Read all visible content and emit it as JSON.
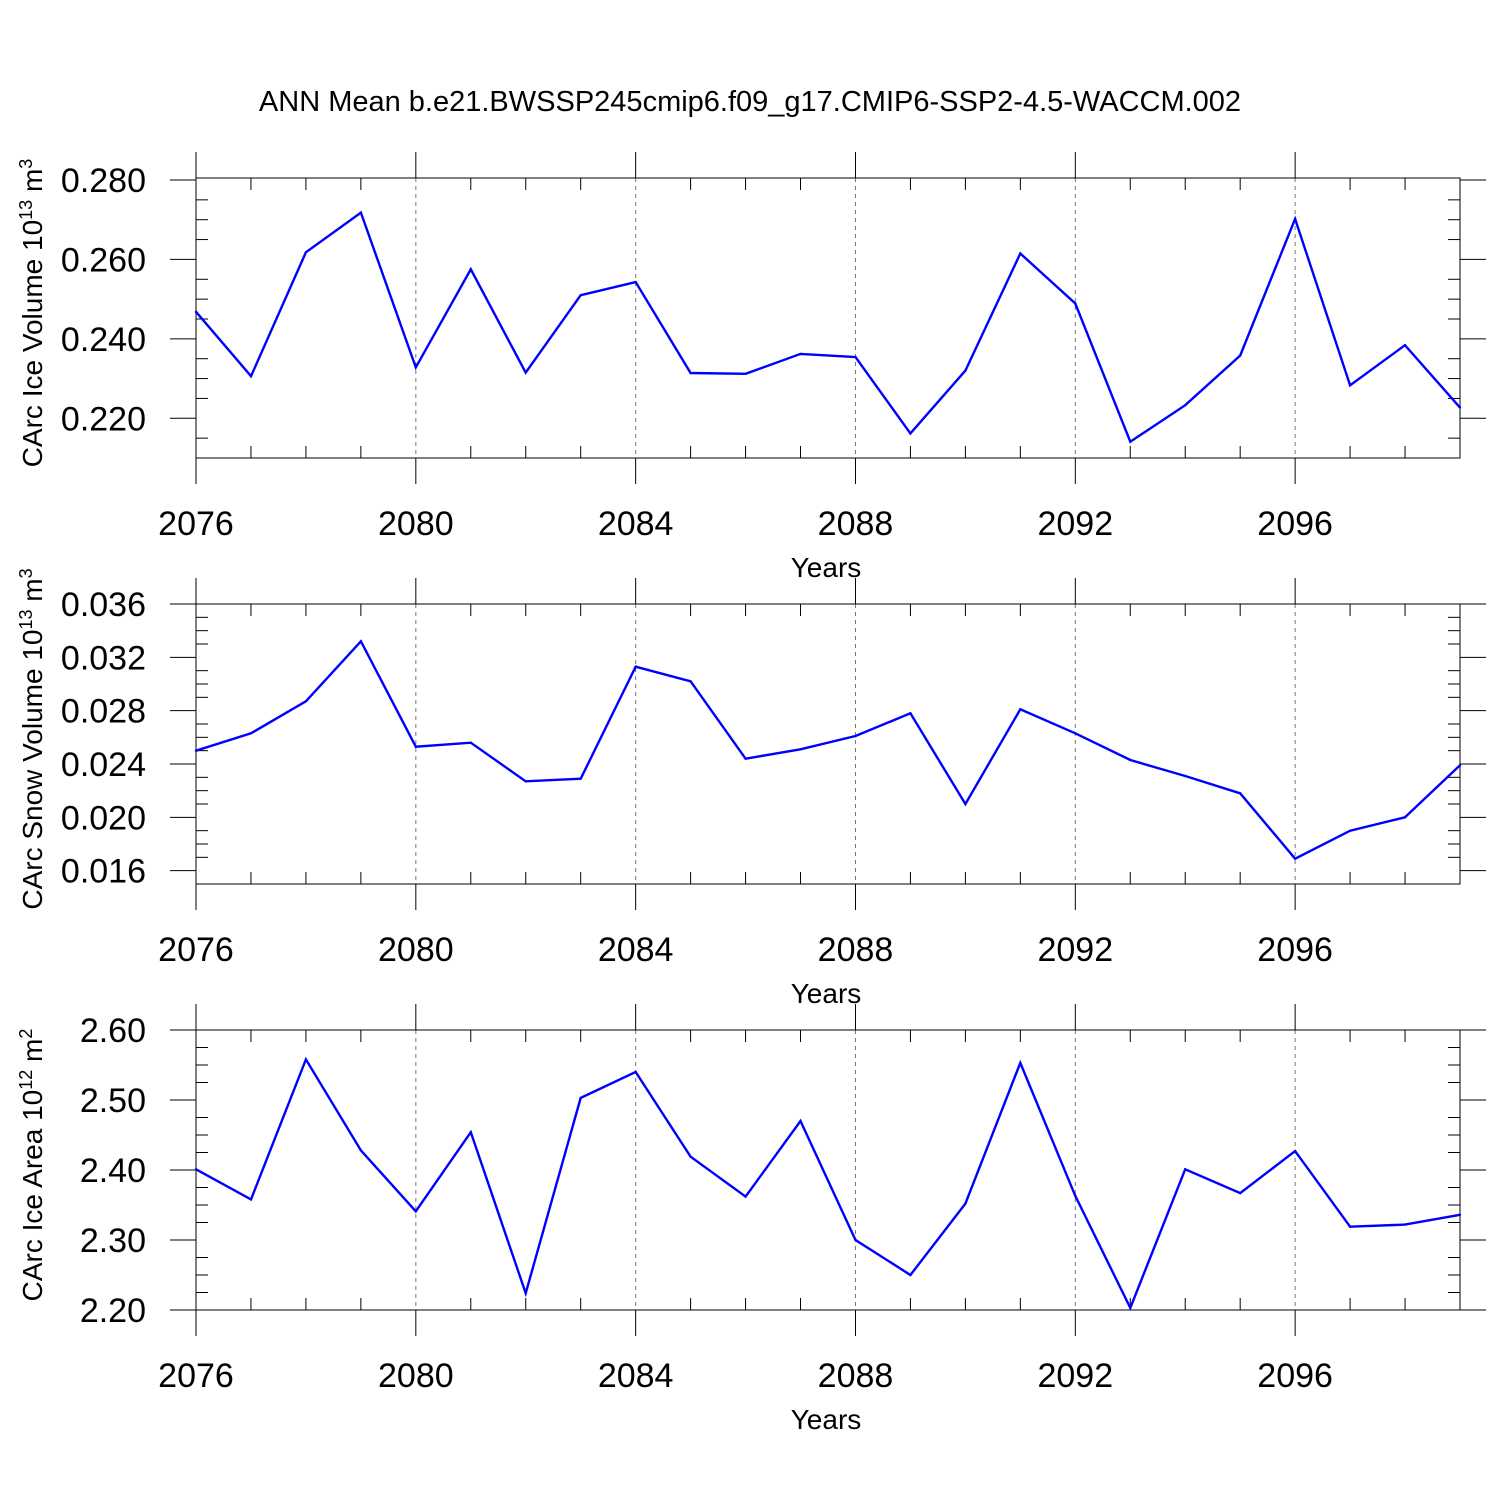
{
  "page_title": "ANN Mean b.e21.BWSSP245cmip6.f09_g17.CMIP6-SSP2-4.5-WACCM.002",
  "colors": {
    "line": "#0000ff",
    "axis": "#000000",
    "grid": "#777777"
  },
  "chart_data": [
    {
      "type": "line",
      "xlabel": "Years",
      "ylabel": "CArc Ice Volume",
      "ylabel_unit": "10",
      "ylabel_exp": "13",
      "ylabel_unit2": " m",
      "ylabel_exp2": "3",
      "xlim": [
        2076,
        2099
      ],
      "ylim": [
        0.21,
        0.2805
      ],
      "x_ticks": [
        "2076",
        "2080",
        "2084",
        "2088",
        "2092",
        "2096"
      ],
      "y_ticks": [
        "0.220",
        "0.240",
        "0.260",
        "0.280"
      ],
      "grid": "vertical dashed at major x ticks",
      "x": [
        2076,
        2077,
        2078,
        2079,
        2080,
        2081,
        2082,
        2083,
        2084,
        2085,
        2086,
        2087,
        2088,
        2089,
        2090,
        2091,
        2092,
        2093,
        2094,
        2095,
        2096,
        2097,
        2098,
        2099
      ],
      "values": [
        0.2468,
        0.2306,
        0.2618,
        0.2718,
        0.2328,
        0.2575,
        0.2315,
        0.251,
        0.2543,
        0.2314,
        0.2312,
        0.2362,
        0.2354,
        0.2162,
        0.232,
        0.2615,
        0.2489,
        0.2141,
        0.2233,
        0.2358,
        0.2702,
        0.2283,
        0.2384,
        0.2227
      ]
    },
    {
      "type": "line",
      "xlabel": "Years",
      "ylabel": "CArc Snow Volume",
      "ylabel_unit": "10",
      "ylabel_exp": "13",
      "ylabel_unit2": " m",
      "ylabel_exp2": "3",
      "xlim": [
        2076,
        2099
      ],
      "ylim": [
        0.015,
        0.036
      ],
      "x_ticks": [
        "2076",
        "2080",
        "2084",
        "2088",
        "2092",
        "2096"
      ],
      "y_ticks": [
        "0.016",
        "0.020",
        "0.024",
        "0.028",
        "0.032",
        "0.036"
      ],
      "grid": "vertical dashed at major x ticks",
      "x": [
        2076,
        2077,
        2078,
        2079,
        2080,
        2081,
        2082,
        2083,
        2084,
        2085,
        2086,
        2087,
        2088,
        2089,
        2090,
        2091,
        2092,
        2093,
        2094,
        2095,
        2096,
        2097,
        2098,
        2099
      ],
      "values": [
        0.025,
        0.0263,
        0.0287,
        0.0332,
        0.0253,
        0.0256,
        0.0227,
        0.0229,
        0.0313,
        0.0302,
        0.0244,
        0.0251,
        0.0261,
        0.0278,
        0.021,
        0.0281,
        0.0263,
        0.0243,
        0.0231,
        0.0218,
        0.0169,
        0.019,
        0.02,
        0.0239
      ]
    },
    {
      "type": "line",
      "xlabel": "Years",
      "ylabel": "CArc Ice Area",
      "ylabel_unit": "10",
      "ylabel_exp": "12",
      "ylabel_unit2": " m",
      "ylabel_exp2": "2",
      "xlim": [
        2076,
        2099
      ],
      "ylim": [
        2.2,
        2.6
      ],
      "x_ticks": [
        "2076",
        "2080",
        "2084",
        "2088",
        "2092",
        "2096"
      ],
      "y_ticks": [
        "2.20",
        "2.30",
        "2.40",
        "2.50",
        "2.60"
      ],
      "grid": "vertical dashed at major x ticks",
      "x": [
        2076,
        2077,
        2078,
        2079,
        2080,
        2081,
        2082,
        2083,
        2084,
        2085,
        2086,
        2087,
        2088,
        2089,
        2090,
        2091,
        2092,
        2093,
        2094,
        2095,
        2096,
        2097,
        2098,
        2099
      ],
      "values": [
        2.401,
        2.358,
        2.558,
        2.428,
        2.341,
        2.454,
        2.224,
        2.503,
        2.54,
        2.419,
        2.362,
        2.47,
        2.3,
        2.25,
        2.352,
        2.553,
        2.363,
        2.203,
        2.401,
        2.367,
        2.427,
        2.319,
        2.322,
        2.336
      ]
    }
  ]
}
